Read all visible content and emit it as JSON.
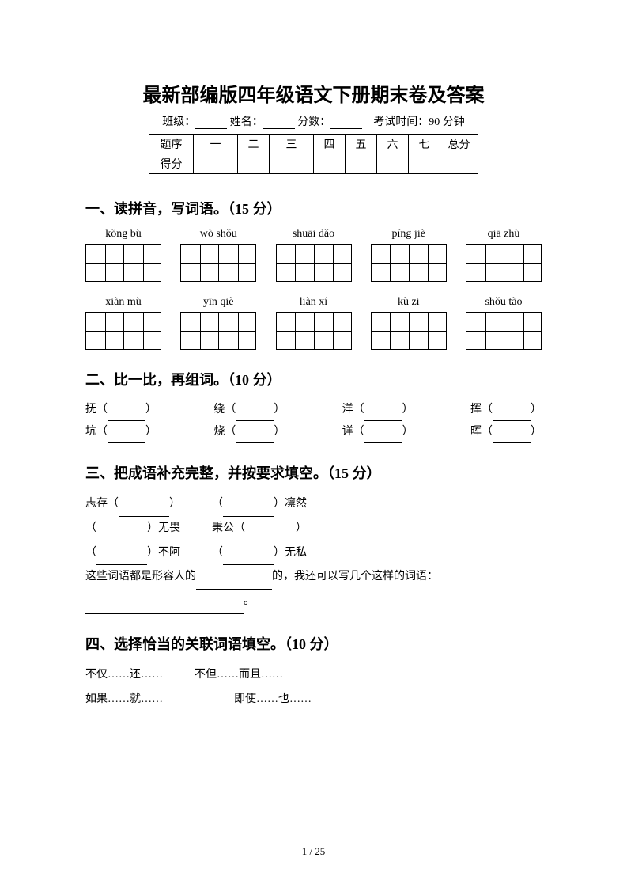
{
  "title": "最新部编版四年级语文下册期末卷及答案",
  "header": {
    "class_label": "班级：",
    "name_label": "姓名：",
    "score_label": "分数：",
    "time_label": "考试时间：90 分钟"
  },
  "score_table": {
    "row1": [
      "题序",
      "一",
      "二",
      "三",
      "四",
      "五",
      "六",
      "七",
      "总分"
    ],
    "row2_label": "得分"
  },
  "q1": {
    "title": "一、读拼音，写词语。（15 分）",
    "row1": [
      "kǒng bù",
      "wò shǒu",
      "shuāi dǎo",
      "píng jiè",
      "qiā zhù"
    ],
    "row2": [
      "xiàn mù",
      "yīn qiè",
      "liàn xí",
      "kù zi",
      "shǒu tào"
    ]
  },
  "q2": {
    "title": "二、比一比，再组词。（10 分）",
    "pairs": [
      [
        "抚",
        "绕",
        "洋",
        "挥"
      ],
      [
        "坑",
        "烧",
        "详",
        "晖"
      ]
    ]
  },
  "q3": {
    "title": "三、把成语补充完整，并按要求填空。（15 分）",
    "l1a": "志存",
    "l1b": "凛然",
    "l2a": "无畏",
    "l2b": "秉公",
    "l3a": "不阿",
    "l3b": "无私",
    "l4a": "这些词语都是形容人的",
    "l4b": "的，我还可以写几个这样的词语："
  },
  "q4": {
    "title": "四、选择恰当的关联词语填空。（10 分）",
    "l1a": "不仅……还……",
    "l1b": "不但……而且……",
    "l2a": "如果……就……",
    "l2b": "即使……也……"
  },
  "page_num": "1 / 25"
}
